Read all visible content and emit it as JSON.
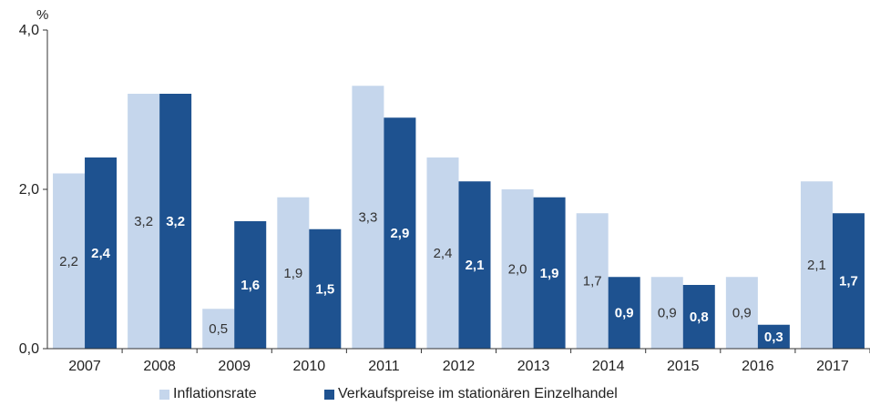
{
  "chart_data": {
    "type": "bar",
    "unit_label": "%",
    "categories": [
      "2007",
      "2008",
      "2009",
      "2010",
      "2011",
      "2012",
      "2013",
      "2014",
      "2015",
      "2016",
      "2017"
    ],
    "series": [
      {
        "name": "Inflationsrate",
        "color": "#c5d6ec",
        "values": [
          2.2,
          3.2,
          0.5,
          1.9,
          3.3,
          2.4,
          2.0,
          1.7,
          0.9,
          0.9,
          2.1
        ],
        "labels": [
          "2,2",
          "3,2",
          "0,5",
          "1,9",
          "3,3",
          "2,4",
          "2,0",
          "1,7",
          "0,9",
          "0,9",
          "2,1"
        ]
      },
      {
        "name": "Verkaufspreise im stationären Einzelhandel",
        "color": "#1e5290",
        "values": [
          2.4,
          3.2,
          1.6,
          1.5,
          2.9,
          2.1,
          1.9,
          0.9,
          0.8,
          0.3,
          1.7
        ],
        "labels": [
          "2,4",
          "3,2",
          "1,6",
          "1,5",
          "2,9",
          "2,1",
          "1,9",
          "0,9",
          "0,8",
          "0,3",
          "1,7"
        ]
      }
    ],
    "yticks": [
      0,
      2,
      4
    ],
    "ytick_labels": [
      "0,0",
      "2,0",
      "4,0"
    ],
    "ylim": [
      0,
      4
    ],
    "grid": false,
    "legend_position": "bottom"
  }
}
